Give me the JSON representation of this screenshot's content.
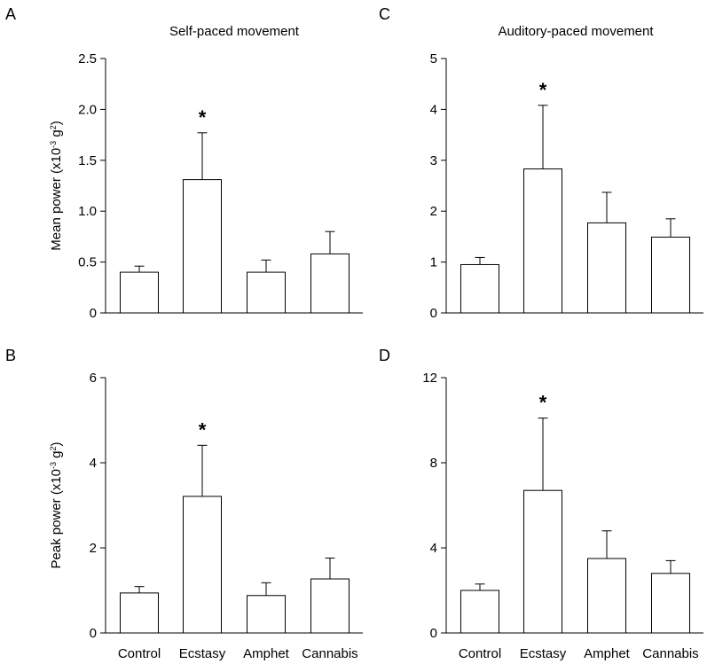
{
  "chart_data": [
    {
      "panel": "A",
      "type": "bar",
      "title": "Self-paced movement",
      "ylabel": "Mean power (x10",
      "ylabel_sup": "-3",
      "ylabel_tail": " g",
      "ylabel_sup2": "2",
      "ylabel_end": ")",
      "categories": [
        "Control",
        "Ecstasy",
        "Amphet",
        "Cannabis"
      ],
      "values": [
        0.4,
        1.31,
        0.4,
        0.58
      ],
      "errors": [
        0.06,
        0.46,
        0.12,
        0.22
      ],
      "significant": [
        false,
        true,
        false,
        false
      ],
      "ylim": [
        0,
        2.5
      ],
      "yticks": [
        "0",
        "0.5",
        "1.0",
        "1.5",
        "2.0",
        "2.5"
      ],
      "show_xticklabels": false
    },
    {
      "panel": "C",
      "type": "bar",
      "title": "Auditory-paced movement",
      "ylabel": "",
      "categories": [
        "Control",
        "Ecstasy",
        "Amphet",
        "Cannabis"
      ],
      "values": [
        0.95,
        2.83,
        1.77,
        1.49
      ],
      "errors": [
        0.14,
        1.25,
        0.6,
        0.36
      ],
      "significant": [
        false,
        true,
        false,
        false
      ],
      "ylim": [
        0,
        5
      ],
      "yticks": [
        "0",
        "1",
        "2",
        "3",
        "4",
        "5"
      ],
      "show_xticklabels": false
    },
    {
      "panel": "B",
      "type": "bar",
      "title": "",
      "ylabel": "Peak power (x10",
      "ylabel_sup": "-3",
      "ylabel_tail": " g",
      "ylabel_sup2": "2",
      "ylabel_end": ")",
      "categories": [
        "Control",
        "Ecstasy",
        "Amphet",
        "Cannabis"
      ],
      "values": [
        0.94,
        3.21,
        0.88,
        1.27
      ],
      "errors": [
        0.15,
        1.2,
        0.3,
        0.49
      ],
      "significant": [
        false,
        true,
        false,
        false
      ],
      "ylim": [
        0,
        6
      ],
      "yticks": [
        "0",
        "2",
        "4",
        "6"
      ],
      "show_xticklabels": true
    },
    {
      "panel": "D",
      "type": "bar",
      "title": "",
      "ylabel": "",
      "categories": [
        "Control",
        "Ecstasy",
        "Amphet",
        "Cannabis"
      ],
      "values": [
        2.0,
        6.7,
        3.5,
        2.8
      ],
      "errors": [
        0.3,
        3.4,
        1.3,
        0.6
      ],
      "significant": [
        false,
        true,
        false,
        false
      ],
      "ylim": [
        0,
        12
      ],
      "yticks": [
        "0",
        "4",
        "8",
        "12"
      ],
      "show_xticklabels": true
    }
  ],
  "significance_marker": "*"
}
